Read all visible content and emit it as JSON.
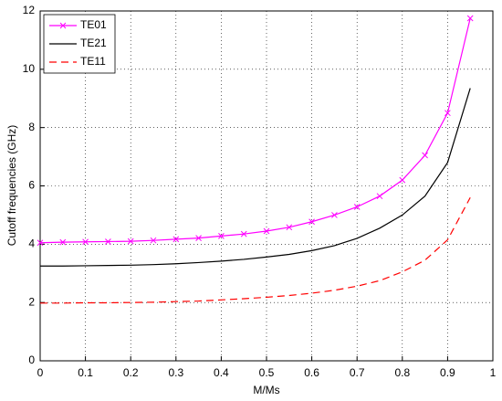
{
  "chart_data": {
    "type": "line",
    "xlabel": "M/Ms",
    "ylabel": "Cutoff frequencies (GHz)",
    "x": [
      0,
      0.05,
      0.1,
      0.15,
      0.2,
      0.25,
      0.3,
      0.35,
      0.4,
      0.45,
      0.5,
      0.55,
      0.6,
      0.65,
      0.7,
      0.75,
      0.8,
      0.85,
      0.9,
      0.95
    ],
    "series": [
      {
        "name": "TE01",
        "color": "#ff00ff",
        "marker": "x",
        "dash": "solid",
        "values": [
          4.05,
          4.07,
          4.08,
          4.09,
          4.1,
          4.13,
          4.17,
          4.21,
          4.28,
          4.35,
          4.45,
          4.58,
          4.77,
          5.0,
          5.28,
          5.65,
          6.2,
          7.05,
          8.5,
          11.75
        ]
      },
      {
        "name": "TE21",
        "color": "#000000",
        "marker": "none",
        "dash": "solid",
        "values": [
          3.25,
          3.25,
          3.26,
          3.27,
          3.28,
          3.3,
          3.33,
          3.37,
          3.42,
          3.48,
          3.56,
          3.65,
          3.78,
          3.95,
          4.2,
          4.55,
          5.0,
          5.65,
          6.8,
          9.35
        ]
      },
      {
        "name": "TE11",
        "color": "#ff0000",
        "marker": "none",
        "dash": "dashed",
        "values": [
          1.98,
          1.98,
          1.99,
          1.99,
          2.0,
          2.01,
          2.03,
          2.05,
          2.09,
          2.13,
          2.18,
          2.24,
          2.32,
          2.42,
          2.56,
          2.75,
          3.05,
          3.45,
          4.15,
          5.6
        ]
      }
    ],
    "xlim": [
      0,
      1
    ],
    "xticks": [
      0,
      0.1,
      0.2,
      0.3,
      0.4,
      0.5,
      0.6,
      0.7,
      0.8,
      0.9,
      1
    ],
    "ylim": [
      0,
      12
    ],
    "yticks": [
      0,
      2,
      4,
      6,
      8,
      10,
      12
    ],
    "grid": true,
    "legend": "top-left"
  }
}
